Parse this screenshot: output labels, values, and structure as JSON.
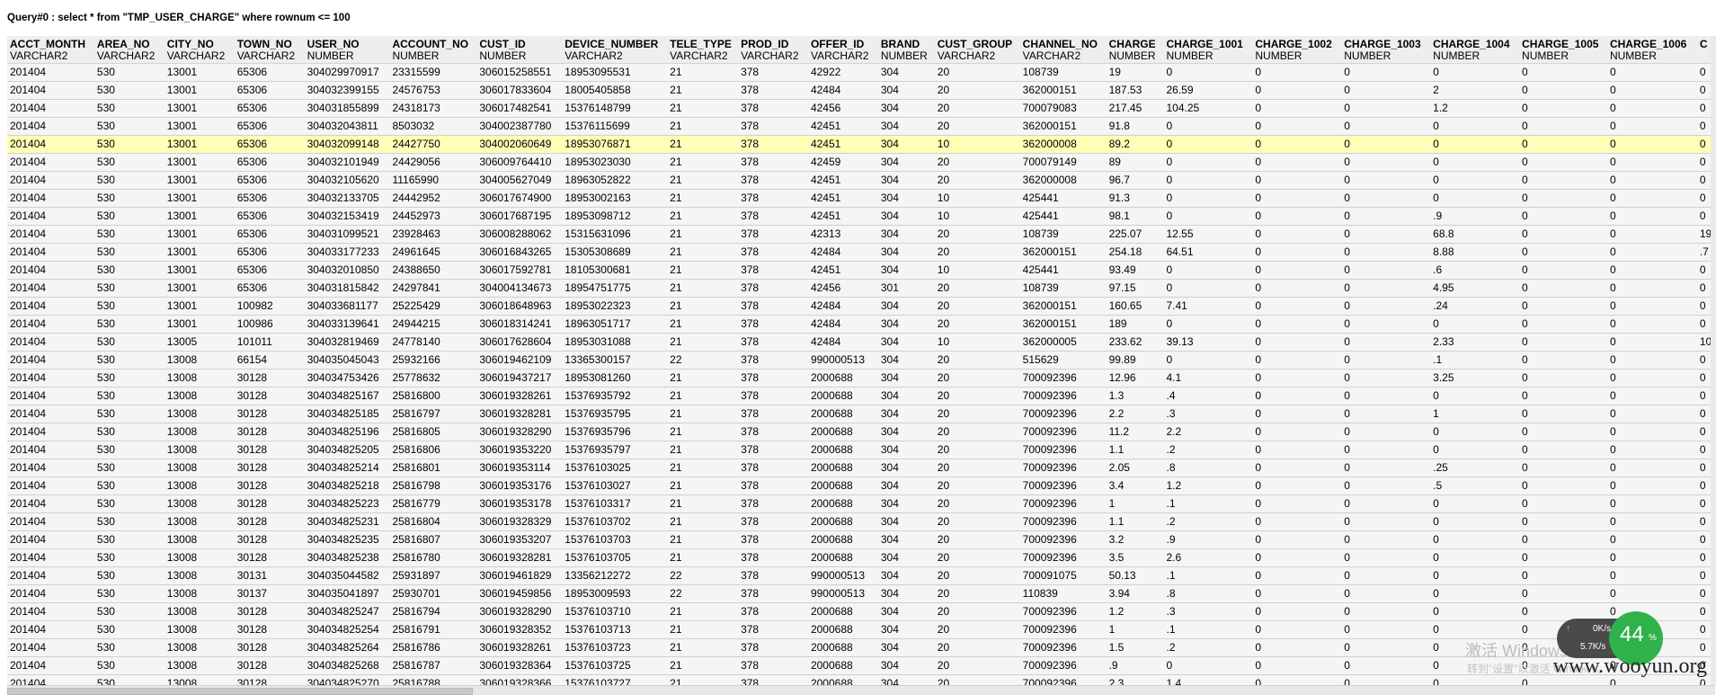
{
  "query_title": "Query#0 : select * from \"TMP_USER_CHARGE\" where rownum <= 100",
  "columns": [
    {
      "name": "ACCT_MONTH",
      "type": "VARCHAR2"
    },
    {
      "name": "AREA_NO",
      "type": "VARCHAR2"
    },
    {
      "name": "CITY_NO",
      "type": "VARCHAR2"
    },
    {
      "name": "TOWN_NO",
      "type": "VARCHAR2"
    },
    {
      "name": "USER_NO",
      "type": "NUMBER"
    },
    {
      "name": "ACCOUNT_NO",
      "type": "NUMBER"
    },
    {
      "name": "CUST_ID",
      "type": "NUMBER"
    },
    {
      "name": "DEVICE_NUMBER",
      "type": "VARCHAR2"
    },
    {
      "name": "TELE_TYPE",
      "type": "VARCHAR2"
    },
    {
      "name": "PROD_ID",
      "type": "VARCHAR2"
    },
    {
      "name": "OFFER_ID",
      "type": "VARCHAR2"
    },
    {
      "name": "BRAND",
      "type": "NUMBER"
    },
    {
      "name": "CUST_GROUP",
      "type": "VARCHAR2"
    },
    {
      "name": "CHANNEL_NO",
      "type": "VARCHAR2"
    },
    {
      "name": "CHARGE",
      "type": "NUMBER"
    },
    {
      "name": "CHARGE_1001",
      "type": "NUMBER"
    },
    {
      "name": "CHARGE_1002",
      "type": "NUMBER"
    },
    {
      "name": "CHARGE_1003",
      "type": "NUMBER"
    },
    {
      "name": "CHARGE_1004",
      "type": "NUMBER"
    },
    {
      "name": "CHARGE_1005",
      "type": "NUMBER"
    },
    {
      "name": "CHARGE_1006",
      "type": "NUMBER"
    },
    {
      "name": "C",
      "type": ""
    }
  ],
  "highlighted_row": 4,
  "rows": [
    [
      "201404",
      "530",
      "13001",
      "65306",
      "304029970917",
      "23315599",
      "306015258551",
      "18953095531",
      "21",
      "378",
      "42922",
      "304",
      "20",
      "108739",
      "19",
      "0",
      "0",
      "0",
      "0",
      "0",
      "0",
      "0"
    ],
    [
      "201404",
      "530",
      "13001",
      "65306",
      "304032399155",
      "24576753",
      "306017833604",
      "18005405858",
      "21",
      "378",
      "42484",
      "304",
      "20",
      "362000151",
      "187.53",
      "26.59",
      "0",
      "0",
      "2",
      "0",
      "0",
      "0"
    ],
    [
      "201404",
      "530",
      "13001",
      "65306",
      "304031855899",
      "24318173",
      "306017482541",
      "15376148799",
      "21",
      "378",
      "42456",
      "304",
      "20",
      "700079083",
      "217.45",
      "104.25",
      "0",
      "0",
      "1.2",
      "0",
      "0",
      "0"
    ],
    [
      "201404",
      "530",
      "13001",
      "65306",
      "304032043811",
      "8503032",
      "304002387780",
      "15376115699",
      "21",
      "378",
      "42451",
      "304",
      "20",
      "362000151",
      "91.8",
      "0",
      "0",
      "0",
      "0",
      "0",
      "0",
      "0"
    ],
    [
      "201404",
      "530",
      "13001",
      "65306",
      "304032099148",
      "24427750",
      "304002060649",
      "18953076871",
      "21",
      "378",
      "42451",
      "304",
      "10",
      "362000008",
      "89.2",
      "0",
      "0",
      "0",
      "0",
      "0",
      "0",
      "0"
    ],
    [
      "201404",
      "530",
      "13001",
      "65306",
      "304032101949",
      "24429056",
      "306009764410",
      "18953023030",
      "21",
      "378",
      "42459",
      "304",
      "20",
      "700079149",
      "89",
      "0",
      "0",
      "0",
      "0",
      "0",
      "0",
      "0"
    ],
    [
      "201404",
      "530",
      "13001",
      "65306",
      "304032105620",
      "11165990",
      "304005627049",
      "18963052822",
      "21",
      "378",
      "42451",
      "304",
      "20",
      "362000008",
      "96.7",
      "0",
      "0",
      "0",
      "0",
      "0",
      "0",
      "0"
    ],
    [
      "201404",
      "530",
      "13001",
      "65306",
      "304032133705",
      "24442952",
      "306017674900",
      "18953002163",
      "21",
      "378",
      "42451",
      "304",
      "10",
      "425441",
      "91.3",
      "0",
      "0",
      "0",
      "0",
      "0",
      "0",
      "0"
    ],
    [
      "201404",
      "530",
      "13001",
      "65306",
      "304032153419",
      "24452973",
      "306017687195",
      "18953098712",
      "21",
      "378",
      "42451",
      "304",
      "10",
      "425441",
      "98.1",
      "0",
      "0",
      "0",
      ".9",
      "0",
      "0",
      "0"
    ],
    [
      "201404",
      "530",
      "13001",
      "65306",
      "304031099521",
      "23928463",
      "306008288062",
      "15315631096",
      "21",
      "378",
      "42313",
      "304",
      "20",
      "108739",
      "225.07",
      "12.55",
      "0",
      "0",
      "68.8",
      "0",
      "0",
      "19"
    ],
    [
      "201404",
      "530",
      "13001",
      "65306",
      "304033177233",
      "24961645",
      "306016843265",
      "15305308689",
      "21",
      "378",
      "42484",
      "304",
      "20",
      "362000151",
      "254.18",
      "64.51",
      "0",
      "0",
      "8.88",
      "0",
      "0",
      ".7"
    ],
    [
      "201404",
      "530",
      "13001",
      "65306",
      "304032010850",
      "24388650",
      "306017592781",
      "18105300681",
      "21",
      "378",
      "42451",
      "304",
      "10",
      "425441",
      "93.49",
      "0",
      "0",
      "0",
      ".6",
      "0",
      "0",
      "0"
    ],
    [
      "201404",
      "530",
      "13001",
      "65306",
      "304031815842",
      "24297841",
      "304004134673",
      "18954751775",
      "21",
      "378",
      "42456",
      "301",
      "20",
      "108739",
      "97.15",
      "0",
      "0",
      "0",
      "4.95",
      "0",
      "0",
      "0"
    ],
    [
      "201404",
      "530",
      "13001",
      "100982",
      "304033681177",
      "25225429",
      "306018648963",
      "18953022323",
      "21",
      "378",
      "42484",
      "304",
      "20",
      "362000151",
      "160.65",
      "7.41",
      "0",
      "0",
      ".24",
      "0",
      "0",
      "0"
    ],
    [
      "201404",
      "530",
      "13001",
      "100986",
      "304033139641",
      "24944215",
      "306018314241",
      "18963051717",
      "21",
      "378",
      "42484",
      "304",
      "20",
      "362000151",
      "189",
      "0",
      "0",
      "0",
      "0",
      "0",
      "0",
      "0"
    ],
    [
      "201404",
      "530",
      "13005",
      "101011",
      "304032819469",
      "24778140",
      "306017628604",
      "18953031088",
      "21",
      "378",
      "42484",
      "304",
      "10",
      "362000005",
      "233.62",
      "39.13",
      "0",
      "0",
      "2.33",
      "0",
      "0",
      "10"
    ],
    [
      "201404",
      "530",
      "13008",
      "66154",
      "304035045043",
      "25932166",
      "306019462109",
      "13365300157",
      "22",
      "378",
      "990000513",
      "304",
      "20",
      "515629",
      "99.89",
      "0",
      "0",
      "0",
      ".1",
      "0",
      "0",
      "0"
    ],
    [
      "201404",
      "530",
      "13008",
      "30128",
      "304034753426",
      "25778632",
      "306019437217",
      "18953081260",
      "21",
      "378",
      "2000688",
      "304",
      "20",
      "700092396",
      "12.96",
      "4.1",
      "0",
      "0",
      "3.25",
      "0",
      "0",
      "0"
    ],
    [
      "201404",
      "530",
      "13008",
      "30128",
      "304034825167",
      "25816800",
      "306019328261",
      "15376935792",
      "21",
      "378",
      "2000688",
      "304",
      "20",
      "700092396",
      "1.3",
      ".4",
      "0",
      "0",
      "0",
      "0",
      "0",
      "0"
    ],
    [
      "201404",
      "530",
      "13008",
      "30128",
      "304034825185",
      "25816797",
      "306019328281",
      "15376935795",
      "21",
      "378",
      "2000688",
      "304",
      "20",
      "700092396",
      "2.2",
      ".3",
      "0",
      "0",
      "1",
      "0",
      "0",
      "0"
    ],
    [
      "201404",
      "530",
      "13008",
      "30128",
      "304034825196",
      "25816805",
      "306019328290",
      "15376935796",
      "21",
      "378",
      "2000688",
      "304",
      "20",
      "700092396",
      "11.2",
      "2.2",
      "0",
      "0",
      "0",
      "0",
      "0",
      "0"
    ],
    [
      "201404",
      "530",
      "13008",
      "30128",
      "304034825205",
      "25816806",
      "306019353220",
      "15376935797",
      "21",
      "378",
      "2000688",
      "304",
      "20",
      "700092396",
      "1.1",
      ".2",
      "0",
      "0",
      "0",
      "0",
      "0",
      "0"
    ],
    [
      "201404",
      "530",
      "13008",
      "30128",
      "304034825214",
      "25816801",
      "306019353114",
      "15376103025",
      "21",
      "378",
      "2000688",
      "304",
      "20",
      "700092396",
      "2.05",
      ".8",
      "0",
      "0",
      ".25",
      "0",
      "0",
      "0"
    ],
    [
      "201404",
      "530",
      "13008",
      "30128",
      "304034825218",
      "25816798",
      "306019353176",
      "15376103027",
      "21",
      "378",
      "2000688",
      "304",
      "20",
      "700092396",
      "3.4",
      "1.2",
      "0",
      "0",
      ".5",
      "0",
      "0",
      "0"
    ],
    [
      "201404",
      "530",
      "13008",
      "30128",
      "304034825223",
      "25816779",
      "306019353178",
      "15376103317",
      "21",
      "378",
      "2000688",
      "304",
      "20",
      "700092396",
      "1",
      ".1",
      "0",
      "0",
      "0",
      "0",
      "0",
      "0"
    ],
    [
      "201404",
      "530",
      "13008",
      "30128",
      "304034825231",
      "25816804",
      "306019328329",
      "15376103702",
      "21",
      "378",
      "2000688",
      "304",
      "20",
      "700092396",
      "1.1",
      ".2",
      "0",
      "0",
      "0",
      "0",
      "0",
      "0"
    ],
    [
      "201404",
      "530",
      "13008",
      "30128",
      "304034825235",
      "25816807",
      "306019353207",
      "15376103703",
      "21",
      "378",
      "2000688",
      "304",
      "20",
      "700092396",
      "3.2",
      ".9",
      "0",
      "0",
      "0",
      "0",
      "0",
      "0"
    ],
    [
      "201404",
      "530",
      "13008",
      "30128",
      "304034825238",
      "25816780",
      "306019328281",
      "15376103705",
      "21",
      "378",
      "2000688",
      "304",
      "20",
      "700092396",
      "3.5",
      "2.6",
      "0",
      "0",
      "0",
      "0",
      "0",
      "0"
    ],
    [
      "201404",
      "530",
      "13008",
      "30131",
      "304035044582",
      "25931897",
      "306019461829",
      "13356212272",
      "22",
      "378",
      "990000513",
      "304",
      "20",
      "700091075",
      "50.13",
      ".1",
      "0",
      "0",
      "0",
      "0",
      "0",
      "0"
    ],
    [
      "201404",
      "530",
      "13008",
      "30137",
      "304035041897",
      "25930701",
      "306019459856",
      "18953009593",
      "22",
      "378",
      "990000513",
      "304",
      "20",
      "110839",
      "3.94",
      ".8",
      "0",
      "0",
      "0",
      "0",
      "0",
      "0"
    ],
    [
      "201404",
      "530",
      "13008",
      "30128",
      "304034825247",
      "25816794",
      "306019328290",
      "15376103710",
      "21",
      "378",
      "2000688",
      "304",
      "20",
      "700092396",
      "1.2",
      ".3",
      "0",
      "0",
      "0",
      "0",
      "0",
      "0"
    ],
    [
      "201404",
      "530",
      "13008",
      "30128",
      "304034825254",
      "25816791",
      "306019328352",
      "15376103713",
      "21",
      "378",
      "2000688",
      "304",
      "20",
      "700092396",
      "1",
      ".1",
      "0",
      "0",
      "0",
      "0",
      "0",
      "0"
    ],
    [
      "201404",
      "530",
      "13008",
      "30128",
      "304034825264",
      "25816786",
      "306019328261",
      "15376103723",
      "21",
      "378",
      "2000688",
      "304",
      "20",
      "700092396",
      "1.5",
      ".2",
      "0",
      "0",
      "0",
      "0",
      "0",
      "0"
    ],
    [
      "201404",
      "530",
      "13008",
      "30128",
      "304034825268",
      "25816787",
      "306019328364",
      "15376103725",
      "21",
      "378",
      "2000688",
      "304",
      "20",
      "700092396",
      ".9",
      "0",
      "0",
      "0",
      "0",
      "0",
      "0",
      "0"
    ],
    [
      "201404",
      "530",
      "13008",
      "30128",
      "304034825270",
      "25816788",
      "306019328366",
      "15376103727",
      "21",
      "378",
      "2000688",
      "304",
      "20",
      "700092396",
      "2.3",
      "1.4",
      "0",
      "0",
      "0",
      "0",
      "0",
      "0"
    ]
  ],
  "watermark": {
    "activate": "激活 Windows",
    "sub": "转到\"设置\"以激活 Windows。",
    "site": "www.wooyun.org"
  },
  "net_widget": {
    "up": "0K/s",
    "down": "5.7K/s",
    "percent": "44",
    "percent_unit": "%"
  }
}
